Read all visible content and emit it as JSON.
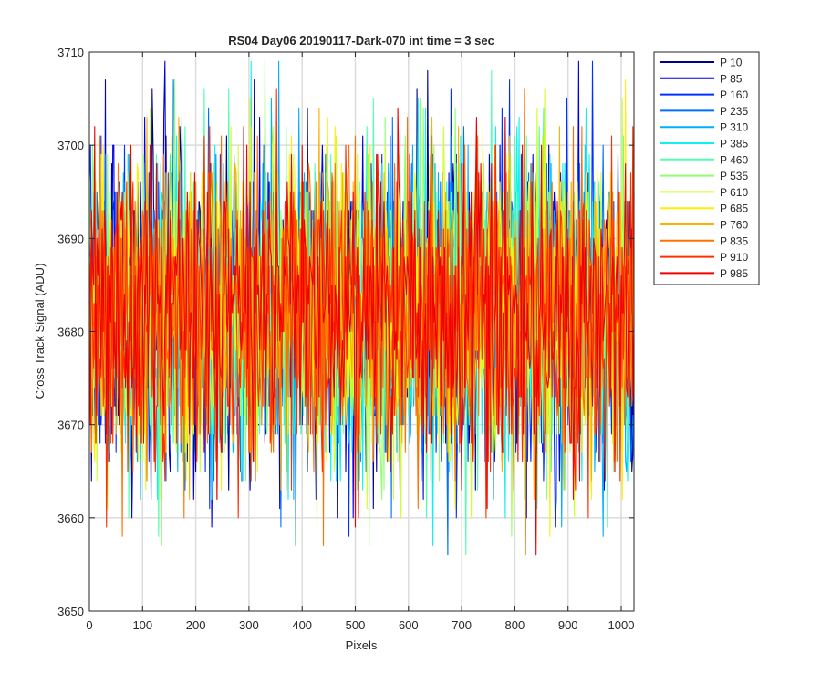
{
  "chart_data": {
    "type": "line",
    "title": "RS04 Day06 20190117-Dark-070 int time = 3 sec",
    "xlabel": "Pixels",
    "ylabel": "Cross Track Signal (ADU)",
    "xlim": [
      0,
      1024
    ],
    "ylim": [
      3650,
      3710
    ],
    "xticks": [
      0,
      100,
      200,
      300,
      400,
      500,
      600,
      700,
      800,
      900,
      1000
    ],
    "yticks": [
      3650,
      3660,
      3670,
      3680,
      3690,
      3700,
      3710
    ],
    "grid": true,
    "legend_position": "outside-top-right",
    "signal_mean": 3682,
    "signal_min": 3651,
    "signal_max": 3709,
    "series": [
      {
        "name": "P 10",
        "color": "#00008F"
      },
      {
        "name": "P 85",
        "color": "#0000DB"
      },
      {
        "name": "P 160",
        "color": "#0030FF"
      },
      {
        "name": "P 235",
        "color": "#0070FF"
      },
      {
        "name": "P 310",
        "color": "#00B0FF"
      },
      {
        "name": "P 385",
        "color": "#10F0EF"
      },
      {
        "name": "P 460",
        "color": "#50FFAF"
      },
      {
        "name": "P 535",
        "color": "#90FF6F"
      },
      {
        "name": "P 610",
        "color": "#D0FF2F"
      },
      {
        "name": "P 685",
        "color": "#FFEF00"
      },
      {
        "name": "P 760",
        "color": "#FFB000"
      },
      {
        "name": "P 835",
        "color": "#FF7000"
      },
      {
        "name": "P 910",
        "color": "#FF3000"
      },
      {
        "name": "P 985",
        "color": "#F00000"
      }
    ]
  }
}
